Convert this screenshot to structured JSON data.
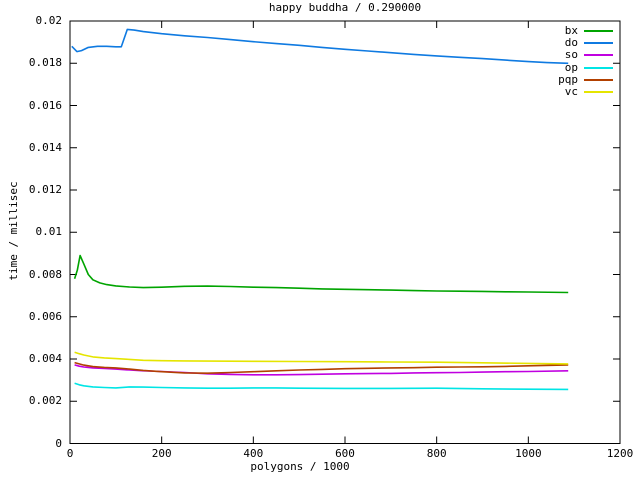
{
  "window": {
    "background": "#ffffff",
    "foreground": "#000000"
  },
  "chart_data": {
    "type": "line",
    "title": "happy buddha / 0.290000",
    "xlabel": "polygons / 1000",
    "ylabel": "time / millisec",
    "xlim": [
      0,
      1200
    ],
    "ylim": [
      0,
      0.02
    ],
    "grid": false,
    "legend_position": "top-right-inside",
    "xticks": {
      "values": [
        0,
        200,
        400,
        600,
        800,
        1000,
        1200
      ],
      "labels": [
        "0",
        "200",
        "400",
        "600",
        "800",
        "1000",
        "1200"
      ]
    },
    "yticks": {
      "values": [
        0,
        0.002,
        0.004,
        0.006,
        0.008,
        0.01,
        0.012,
        0.014,
        0.016,
        0.018,
        0.02
      ],
      "labels": [
        "0",
        "0.002",
        "0.004",
        "0.006",
        "0.008",
        "0.01",
        "0.012",
        "0.014",
        "0.016",
        "0.018",
        "0.02"
      ]
    },
    "series": [
      {
        "name": "bx",
        "color": "#00a400",
        "x": [
          10,
          16,
          22,
          30,
          40,
          50,
          65,
          80,
          100,
          130,
          160,
          200,
          250,
          300,
          350,
          400,
          450,
          500,
          550,
          600,
          650,
          700,
          750,
          800,
          850,
          900,
          950,
          1000,
          1087
        ],
        "y": [
          0.0078,
          0.0082,
          0.0089,
          0.0085,
          0.008,
          0.00775,
          0.0076,
          0.00752,
          0.00746,
          0.00741,
          0.00738,
          0.0074,
          0.00744,
          0.00745,
          0.00743,
          0.0074,
          0.00738,
          0.00735,
          0.00732,
          0.0073,
          0.00728,
          0.00726,
          0.00724,
          0.00722,
          0.00721,
          0.0072,
          0.00718,
          0.00717,
          0.00715
        ]
      },
      {
        "name": "do",
        "color": "#0f7ae1",
        "x": [
          4,
          15,
          25,
          40,
          60,
          80,
          100,
          112,
          125,
          140,
          160,
          200,
          250,
          300,
          350,
          400,
          450,
          500,
          550,
          600,
          650,
          700,
          750,
          800,
          850,
          900,
          950,
          1000,
          1040,
          1087
        ],
        "y": [
          0.0188,
          0.01855,
          0.0186,
          0.01875,
          0.0188,
          0.0188,
          0.01878,
          0.01878,
          0.0196,
          0.01957,
          0.0195,
          0.0194,
          0.0193,
          0.01922,
          0.01912,
          0.01902,
          0.01893,
          0.01885,
          0.01875,
          0.01866,
          0.01858,
          0.0185,
          0.01842,
          0.01835,
          0.01828,
          0.01822,
          0.01815,
          0.01808,
          0.01803,
          0.018
        ]
      },
      {
        "name": "so",
        "color": "#c000e0",
        "x": [
          10,
          20,
          30,
          50,
          75,
          100,
          130,
          160,
          200,
          250,
          300,
          350,
          400,
          450,
          500,
          550,
          600,
          650,
          700,
          750,
          800,
          850,
          900,
          950,
          1000,
          1087
        ],
        "y": [
          0.00372,
          0.00366,
          0.00362,
          0.00358,
          0.00355,
          0.00352,
          0.00348,
          0.00344,
          0.00341,
          0.00336,
          0.0033,
          0.00327,
          0.00325,
          0.00325,
          0.00326,
          0.00328,
          0.0033,
          0.00331,
          0.00332,
          0.00334,
          0.00335,
          0.00336,
          0.00338,
          0.0034,
          0.00341,
          0.00344
        ]
      },
      {
        "name": "op",
        "color": "#00e5e5",
        "x": [
          10,
          20,
          30,
          50,
          75,
          100,
          130,
          160,
          200,
          250,
          300,
          350,
          400,
          450,
          500,
          600,
          700,
          800,
          900,
          1000,
          1087
        ],
        "y": [
          0.00285,
          0.00278,
          0.00273,
          0.00268,
          0.00265,
          0.00263,
          0.00268,
          0.00267,
          0.00265,
          0.00263,
          0.00262,
          0.00262,
          0.00263,
          0.00263,
          0.00262,
          0.00261,
          0.00261,
          0.00262,
          0.00259,
          0.00257,
          0.00256
        ]
      },
      {
        "name": "pqp",
        "color": "#b24000",
        "x": [
          10,
          20,
          30,
          50,
          75,
          100,
          130,
          160,
          200,
          250,
          300,
          350,
          400,
          450,
          500,
          550,
          600,
          650,
          700,
          750,
          800,
          850,
          900,
          950,
          1000,
          1087
        ],
        "y": [
          0.00383,
          0.00377,
          0.00371,
          0.00364,
          0.0036,
          0.00358,
          0.00352,
          0.00346,
          0.0034,
          0.00334,
          0.00333,
          0.00336,
          0.0034,
          0.00344,
          0.00348,
          0.00351,
          0.00354,
          0.00356,
          0.00358,
          0.00359,
          0.00361,
          0.00362,
          0.00363,
          0.00365,
          0.00368,
          0.00372
        ]
      },
      {
        "name": "vc",
        "color": "#e5e500",
        "x": [
          10,
          20,
          30,
          50,
          75,
          100,
          130,
          160,
          200,
          250,
          300,
          400,
          500,
          600,
          700,
          800,
          900,
          1000,
          1087
        ],
        "y": [
          0.00432,
          0.00425,
          0.00419,
          0.0041,
          0.00405,
          0.00402,
          0.00398,
          0.00394,
          0.00392,
          0.00391,
          0.0039,
          0.00389,
          0.00388,
          0.00387,
          0.00386,
          0.00385,
          0.00382,
          0.00379,
          0.00377
        ]
      }
    ],
    "legend": [
      "bx",
      "do",
      "so",
      "op",
      "pqp",
      "vc"
    ]
  }
}
